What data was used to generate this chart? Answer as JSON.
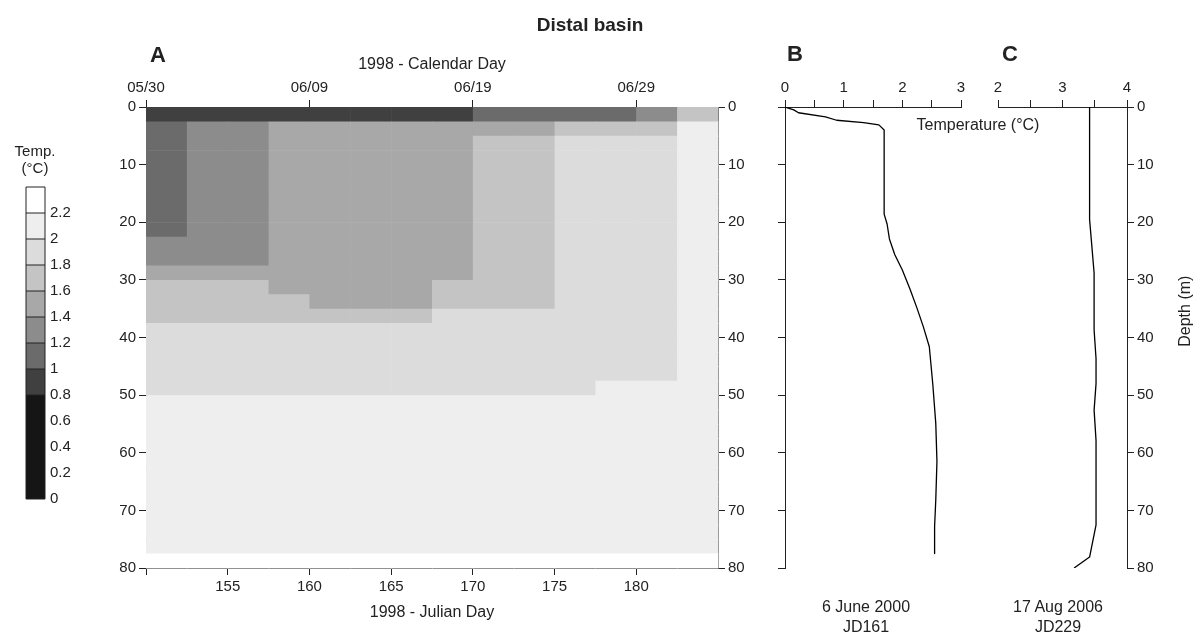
{
  "chart_data": [
    {
      "type": "heatmap",
      "title": "Distal basin",
      "annotations": [
        "A"
      ],
      "x2label": "1998 - Calendar Day",
      "xlabel": "1998 - Julian Day",
      "clabel": "Temp. (°C)",
      "x": [
        151.25,
        153.75,
        156.25,
        158.75,
        161.25,
        163.75,
        166.25,
        168.75,
        171.25,
        173.75,
        176.25,
        178.75,
        181.25,
        183.75
      ],
      "y": [
        1.25,
        3.75,
        6.25,
        8.75,
        11.25,
        13.75,
        16.25,
        18.75,
        21.25,
        23.75,
        26.25,
        28.75,
        31.25,
        33.75,
        36.25,
        38.75,
        41.25,
        43.75,
        46.25,
        48.75,
        51.25,
        53.75,
        56.25,
        58.75,
        61.25,
        63.75,
        66.25,
        68.75,
        71.25,
        73.75,
        76.25,
        78.75
      ],
      "cells": [
        [
          0.9,
          0.9,
          0.9,
          0.9,
          0.9,
          0.9,
          0.9,
          0.9,
          1.1,
          1.1,
          1.1,
          1.1,
          1.3,
          1.7
        ],
        [
          1.1,
          1.3,
          1.3,
          1.5,
          1.5,
          1.5,
          1.5,
          1.5,
          1.5,
          1.5,
          1.7,
          1.7,
          1.7,
          2.1
        ],
        [
          1.1,
          1.3,
          1.3,
          1.5,
          1.5,
          1.5,
          1.5,
          1.5,
          1.7,
          1.7,
          1.9,
          1.9,
          1.9,
          2.1
        ],
        [
          1.1,
          1.3,
          1.3,
          1.5,
          1.5,
          1.5,
          1.5,
          1.5,
          1.7,
          1.7,
          1.9,
          1.9,
          1.9,
          2.1
        ],
        [
          1.1,
          1.3,
          1.3,
          1.5,
          1.5,
          1.5,
          1.5,
          1.5,
          1.7,
          1.7,
          1.9,
          1.9,
          1.9,
          2.1
        ],
        [
          1.1,
          1.3,
          1.3,
          1.5,
          1.5,
          1.5,
          1.5,
          1.5,
          1.7,
          1.7,
          1.9,
          1.9,
          1.9,
          2.1
        ],
        [
          1.1,
          1.3,
          1.3,
          1.5,
          1.5,
          1.5,
          1.5,
          1.5,
          1.7,
          1.7,
          1.9,
          1.9,
          1.9,
          2.1
        ],
        [
          1.1,
          1.3,
          1.3,
          1.5,
          1.5,
          1.5,
          1.5,
          1.5,
          1.7,
          1.7,
          1.9,
          1.9,
          1.9,
          2.1
        ],
        [
          1.1,
          1.3,
          1.3,
          1.5,
          1.5,
          1.5,
          1.5,
          1.5,
          1.7,
          1.7,
          1.9,
          1.9,
          1.9,
          2.1
        ],
        [
          1.3,
          1.3,
          1.3,
          1.5,
          1.5,
          1.5,
          1.5,
          1.5,
          1.7,
          1.7,
          1.9,
          1.9,
          1.9,
          2.1
        ],
        [
          1.3,
          1.3,
          1.3,
          1.5,
          1.5,
          1.5,
          1.5,
          1.5,
          1.7,
          1.7,
          1.9,
          1.9,
          1.9,
          2.1
        ],
        [
          1.5,
          1.5,
          1.5,
          1.5,
          1.5,
          1.5,
          1.5,
          1.5,
          1.7,
          1.7,
          1.9,
          1.9,
          1.9,
          2.1
        ],
        [
          1.7,
          1.7,
          1.7,
          1.5,
          1.5,
          1.5,
          1.5,
          1.7,
          1.7,
          1.7,
          1.9,
          1.9,
          1.9,
          2.1
        ],
        [
          1.7,
          1.7,
          1.7,
          1.7,
          1.5,
          1.5,
          1.5,
          1.7,
          1.7,
          1.7,
          1.9,
          1.9,
          1.9,
          2.1
        ],
        [
          1.7,
          1.7,
          1.7,
          1.7,
          1.7,
          1.7,
          1.7,
          1.9,
          1.9,
          1.9,
          1.9,
          1.9,
          1.9,
          2.1
        ],
        [
          1.9,
          1.9,
          1.9,
          1.9,
          1.9,
          1.9,
          1.9,
          1.9,
          1.9,
          1.9,
          1.9,
          1.9,
          1.9,
          2.1
        ],
        [
          1.9,
          1.9,
          1.9,
          1.9,
          1.9,
          1.9,
          1.9,
          1.9,
          1.9,
          1.9,
          1.9,
          1.9,
          1.9,
          2.1
        ],
        [
          1.9,
          1.9,
          1.9,
          1.9,
          1.9,
          1.9,
          1.9,
          1.9,
          1.9,
          1.9,
          1.9,
          1.9,
          1.9,
          2.1
        ],
        [
          1.9,
          1.9,
          1.9,
          1.9,
          1.9,
          1.9,
          1.9,
          1.9,
          1.9,
          1.9,
          1.9,
          1.9,
          1.9,
          2.1
        ],
        [
          1.9,
          1.9,
          1.9,
          1.9,
          1.9,
          1.9,
          1.9,
          1.9,
          1.9,
          1.9,
          1.9,
          2.1,
          2.1,
          2.1
        ],
        [
          2.1,
          2.1,
          2.1,
          2.1,
          2.1,
          2.1,
          2.1,
          2.1,
          2.1,
          2.1,
          2.1,
          2.1,
          2.1,
          2.1
        ],
        [
          2.1,
          2.1,
          2.1,
          2.1,
          2.1,
          2.1,
          2.1,
          2.1,
          2.1,
          2.1,
          2.1,
          2.1,
          2.1,
          2.1
        ],
        [
          2.1,
          2.1,
          2.1,
          2.1,
          2.1,
          2.1,
          2.1,
          2.1,
          2.1,
          2.1,
          2.1,
          2.1,
          2.1,
          2.1
        ],
        [
          2.1,
          2.1,
          2.1,
          2.1,
          2.1,
          2.1,
          2.1,
          2.1,
          2.1,
          2.1,
          2.1,
          2.1,
          2.1,
          2.1
        ],
        [
          2.1,
          2.1,
          2.1,
          2.1,
          2.1,
          2.1,
          2.1,
          2.1,
          2.1,
          2.1,
          2.1,
          2.1,
          2.1,
          2.1
        ],
        [
          2.1,
          2.1,
          2.1,
          2.1,
          2.1,
          2.1,
          2.1,
          2.1,
          2.1,
          2.1,
          2.1,
          2.1,
          2.1,
          2.1
        ],
        [
          2.1,
          2.1,
          2.1,
          2.1,
          2.1,
          2.1,
          2.1,
          2.1,
          2.1,
          2.1,
          2.1,
          2.1,
          2.1,
          2.1
        ],
        [
          2.1,
          2.1,
          2.1,
          2.1,
          2.1,
          2.1,
          2.1,
          2.1,
          2.1,
          2.1,
          2.1,
          2.1,
          2.1,
          2.1
        ],
        [
          2.1,
          2.1,
          2.1,
          2.1,
          2.1,
          2.1,
          2.1,
          2.1,
          2.1,
          2.1,
          2.1,
          2.1,
          2.1,
          2.1
        ],
        [
          2.1,
          2.1,
          2.1,
          2.1,
          2.1,
          2.1,
          2.1,
          2.1,
          2.1,
          2.1,
          2.1,
          2.1,
          2.1,
          2.1
        ],
        [
          2.1,
          2.1,
          2.1,
          2.1,
          2.1,
          2.1,
          2.1,
          2.1,
          2.1,
          2.1,
          2.1,
          2.1,
          2.1,
          2.1
        ],
        [
          2.3,
          2.3,
          2.3,
          2.3,
          2.3,
          2.3,
          2.3,
          2.3,
          2.3,
          2.3,
          2.3,
          2.3,
          2.3,
          2.3
        ]
      ],
      "xlim": [
        150,
        185
      ],
      "xticks": [
        {
          "value": 150,
          "label": null
        },
        155,
        160,
        165,
        170,
        175,
        180
      ],
      "x2lim": [
        "1998-05-30",
        "1998-07-04"
      ],
      "x2ticks": [
        {
          "value": "1998-05-30",
          "label": "05/30"
        },
        {
          "value": "1998-06-09",
          "label": "06/09"
        },
        {
          "value": "1998-06-19",
          "label": "06/19"
        },
        {
          "value": "1998-06-29",
          "label": "06/29"
        }
      ],
      "ylim": [
        80,
        0
      ],
      "yticks": [
        0,
        10,
        20,
        30,
        40,
        50,
        60,
        70,
        80
      ],
      "y2lim": [
        80,
        0
      ],
      "y2ticks": [
        0,
        10,
        20,
        30,
        40,
        50,
        60,
        70,
        80
      ],
      "clim": [
        0,
        2.4
      ],
      "cticks": [
        0,
        0.2,
        0.4,
        0.6,
        0.8,
        1,
        1.2,
        1.4,
        1.6,
        1.8,
        2,
        2.2
      ],
      "colors": [
        "#151515",
        "#151515",
        "#151515",
        "#151515",
        "#404040",
        "#6b6b6b",
        "#8c8c8c",
        "#a8a8a8",
        "#c4c4c4",
        "#dcdcdc",
        "#eeeeee",
        "#ffffff"
      ]
    },
    {
      "type": "line",
      "annotations": [
        "B",
        "6 June 2000",
        "JD161"
      ],
      "marker": "none",
      "tick_labels": "x",
      "series": [
        {
          "color": "#000000",
          "x": [
            0,
            0.15,
            0.23,
            0.69,
            0.88,
            1.34,
            1.6,
            1.69,
            1.69,
            1.74,
            1.78,
            1.87,
            2.0,
            2.13,
            2.25,
            2.36,
            2.46,
            2.49,
            2.52,
            2.57,
            2.59,
            2.57,
            2.55,
            2.55
          ],
          "values": [
            0,
            0.5,
            1,
            1.7,
            2.3,
            2.7,
            3.1,
            4,
            18.6,
            20.3,
            22.9,
            25.6,
            28.3,
            31.6,
            34.9,
            38.2,
            41.6,
            44.9,
            48.2,
            54.9,
            61.5,
            68.2,
            72.8,
            77.5
          ]
        }
      ],
      "xlim": [
        0,
        3
      ],
      "xticks": [
        0,
        {
          "value": 0.5,
          "label": null
        },
        1,
        {
          "value": 1.5,
          "label": null
        },
        2,
        {
          "value": 2.5,
          "label": null
        },
        3
      ],
      "ylim": [
        80,
        0
      ],
      "yticks": [
        0,
        10,
        20,
        30,
        40,
        50,
        60,
        70,
        80
      ]
    },
    {
      "type": "line",
      "xlabel": "Temperature (°C)",
      "ylabel": "Depth (m)",
      "annotations": [
        "C",
        "17 Aug 2006",
        "JD229"
      ],
      "marker": "none",
      "series": [
        {
          "color": "#000000",
          "x": [
            3.42,
            3.42,
            3.49,
            3.49,
            3.52,
            3.52,
            3.49,
            3.52,
            3.52,
            3.42,
            3.18
          ],
          "values": [
            0,
            19.5,
            28.8,
            38.7,
            43.7,
            48,
            52.6,
            57.9,
            72.5,
            78.1,
            80
          ]
        }
      ],
      "xlim": [
        2,
        4
      ],
      "xticks": [
        2,
        {
          "value": 2.5,
          "label": null
        },
        3,
        {
          "value": 3.5,
          "label": null
        },
        4
      ],
      "ylim": [
        80,
        0
      ],
      "yticks": [
        0,
        10,
        20,
        30,
        40,
        50,
        60,
        70,
        80
      ]
    }
  ]
}
